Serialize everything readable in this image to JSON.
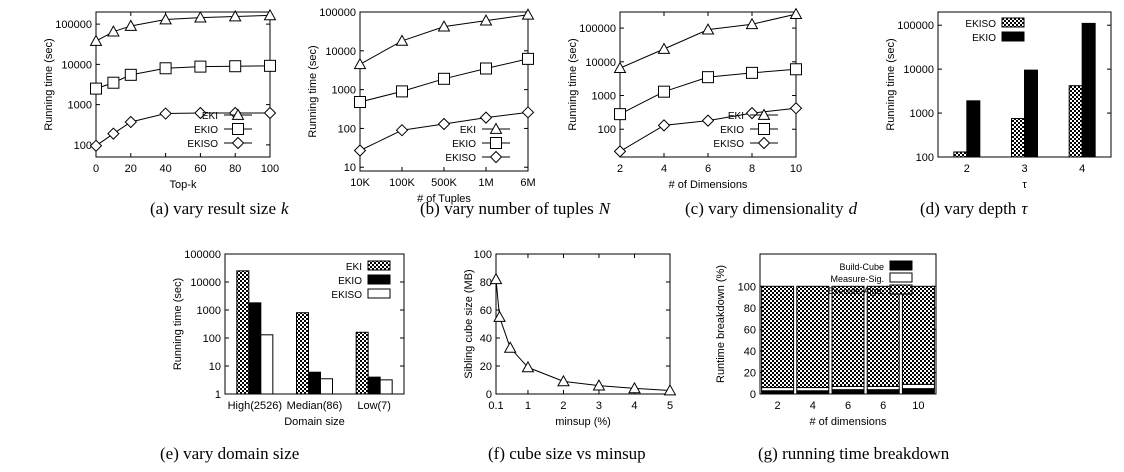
{
  "chart_data": [
    {
      "id": "a",
      "type": "line",
      "caption": "(a) vary result size",
      "caption_var": "k",
      "xlabel": "Top-k",
      "ylabel": "Running time (sec)",
      "yscale": "log",
      "xscale": "linear",
      "xlim": [
        0,
        100
      ],
      "ylim": [
        50,
        200000
      ],
      "xticks": [
        "0",
        "20",
        "40",
        "60",
        "80",
        "100"
      ],
      "xtick_values": [
        0,
        20,
        40,
        60,
        80,
        100
      ],
      "yticks": [
        "100",
        "1000",
        "10000",
        "100000"
      ],
      "ytick_values": [
        100,
        1000,
        10000,
        100000
      ],
      "legend": "bottom-right",
      "series": [
        {
          "name": "EKI",
          "marker": "triangle",
          "x": [
            0,
            10,
            20,
            40,
            60,
            80,
            100
          ],
          "values": [
            38000,
            65000,
            90000,
            130000,
            145000,
            155000,
            165000
          ]
        },
        {
          "name": "EKIO",
          "marker": "square",
          "x": [
            0,
            10,
            20,
            40,
            60,
            80,
            100
          ],
          "values": [
            2500,
            3500,
            5500,
            8000,
            8800,
            9000,
            9200
          ]
        },
        {
          "name": "EKISO",
          "marker": "diamond",
          "x": [
            0,
            10,
            20,
            40,
            60,
            80,
            100
          ],
          "values": [
            95,
            190,
            370,
            600,
            620,
            620,
            620
          ]
        }
      ]
    },
    {
      "id": "b",
      "type": "line",
      "caption": "(b) vary number of tuples",
      "caption_var": "N",
      "xlabel": "# of Tuples",
      "ylabel": "Running time (sec)",
      "yscale": "log",
      "xscale": "category",
      "categories": [
        "10K",
        "100K",
        "500K",
        "1M",
        "6M"
      ],
      "ylim": [
        8,
        100000
      ],
      "xticks": [
        "10K",
        "100K",
        "500K",
        "1M",
        "6M"
      ],
      "yticks": [
        "10",
        "100",
        "1000",
        "10000",
        "100000"
      ],
      "ytick_values": [
        10,
        100,
        1000,
        10000,
        100000
      ],
      "legend": "bottom-right",
      "series": [
        {
          "name": "EKI",
          "marker": "triangle",
          "values": [
            4500,
            18000,
            42000,
            60000,
            85000
          ]
        },
        {
          "name": "EKIO",
          "marker": "square",
          "values": [
            480,
            900,
            1900,
            3500,
            6200
          ]
        },
        {
          "name": "EKISO",
          "marker": "diamond",
          "values": [
            27,
            90,
            130,
            190,
            260
          ]
        }
      ]
    },
    {
      "id": "c",
      "type": "line",
      "caption": "(c) vary dimensionality",
      "caption_var": "d",
      "xlabel": "# of Dimensions",
      "ylabel": "Running time (sec)",
      "yscale": "log",
      "xscale": "linear",
      "xlim": [
        2,
        10
      ],
      "ylim": [
        15,
        300000
      ],
      "xticks": [
        "2",
        "4",
        "6",
        "8",
        "10"
      ],
      "xtick_values": [
        2,
        4,
        6,
        8,
        10
      ],
      "yticks": [
        "100",
        "1000",
        "10000",
        "100000"
      ],
      "ytick_values": [
        100,
        1000,
        10000,
        100000
      ],
      "legend": "bottom-right",
      "series": [
        {
          "name": "EKI",
          "marker": "triangle",
          "x": [
            2,
            4,
            6,
            8,
            10
          ],
          "values": [
            6500,
            24000,
            90000,
            130000,
            260000
          ]
        },
        {
          "name": "EKIO",
          "marker": "square",
          "x": [
            2,
            4,
            6,
            8,
            10
          ],
          "values": [
            280,
            1300,
            3500,
            4700,
            6000
          ]
        },
        {
          "name": "EKISO",
          "marker": "diamond",
          "x": [
            2,
            4,
            6,
            8,
            10
          ],
          "values": [
            22,
            130,
            180,
            300,
            420
          ]
        }
      ]
    },
    {
      "id": "d",
      "type": "bar",
      "caption": "(d) vary depth",
      "caption_var": "τ",
      "xlabel": "τ",
      "ylabel": "Running time (sec)",
      "yscale": "log",
      "categories": [
        "2",
        "3",
        "4"
      ],
      "ylim": [
        100,
        200000
      ],
      "yticks": [
        "100",
        "1000",
        "10000",
        "100000"
      ],
      "ytick_values": [
        100,
        1000,
        10000,
        100000
      ],
      "legend": "top-left",
      "series": [
        {
          "name": "EKISO",
          "pattern": "checker",
          "values": [
            130,
            750,
            4200
          ]
        },
        {
          "name": "EKIO",
          "pattern": "solid",
          "values": [
            1900,
            9500,
            110000
          ]
        }
      ]
    },
    {
      "id": "e",
      "type": "bar",
      "caption": "(e) vary domain size",
      "xlabel": "Domain size",
      "ylabel": "Running time (sec)",
      "yscale": "log",
      "categories": [
        "High(2526)",
        "Median(86)",
        "Low(7)"
      ],
      "ylim": [
        1,
        100000
      ],
      "yticks": [
        "1",
        "10",
        "100",
        "1000",
        "10000",
        "100000"
      ],
      "ytick_values": [
        1,
        10,
        100,
        1000,
        10000,
        100000
      ],
      "legend": "top-right",
      "series": [
        {
          "name": "EKI",
          "pattern": "checker",
          "values": [
            25000,
            800,
            160
          ]
        },
        {
          "name": "EKIO",
          "pattern": "solid",
          "values": [
            1800,
            6,
            4
          ]
        },
        {
          "name": "EKISO",
          "pattern": "white",
          "values": [
            130,
            3.5,
            3.2
          ]
        }
      ]
    },
    {
      "id": "f",
      "type": "line",
      "caption": "(f) cube size vs minsup",
      "xlabel": "minsup (%)",
      "ylabel": "Sibling cube size (MB)",
      "yscale": "linear",
      "xscale": "linear",
      "xlim": [
        0.1,
        5
      ],
      "ylim": [
        0,
        100
      ],
      "xticks": [
        "0.1",
        "1",
        "2",
        "3",
        "4",
        "5"
      ],
      "xtick_values": [
        0.1,
        1,
        2,
        3,
        4,
        5
      ],
      "yticks": [
        "0",
        "20",
        "40",
        "60",
        "80",
        "100"
      ],
      "ytick_values": [
        0,
        20,
        40,
        60,
        80,
        100
      ],
      "series": [
        {
          "marker": "triangle",
          "x": [
            0.1,
            0.2,
            0.5,
            1,
            2,
            3,
            4,
            5
          ],
          "values": [
            82,
            55,
            33,
            19,
            9,
            6,
            4,
            2.5
          ]
        }
      ]
    },
    {
      "id": "g",
      "type": "bar",
      "stacked": true,
      "caption": "(g) running time breakdown",
      "xlabel": "# of dimensions",
      "ylabel": "Runtime breakdown (%)",
      "yscale": "linear",
      "categories": [
        "2",
        "4",
        "6",
        "6",
        "10"
      ],
      "ylim": [
        0,
        130
      ],
      "yticks": [
        "0",
        "20",
        "40",
        "60",
        "80",
        "100"
      ],
      "ytick_values": [
        0,
        20,
        40,
        60,
        80,
        100
      ],
      "legend": "top-right",
      "series": [
        {
          "name": "Build-Cube",
          "pattern": "solid",
          "values": [
            3,
            3,
            4,
            4,
            5
          ]
        },
        {
          "name": "Measure-Sig.",
          "pattern": "white",
          "values": [
            3,
            3,
            3,
            3,
            4
          ]
        },
        {
          "name": "Execute-Algo.",
          "pattern": "checker",
          "values": [
            94,
            94,
            93,
            93,
            91
          ]
        }
      ]
    }
  ]
}
